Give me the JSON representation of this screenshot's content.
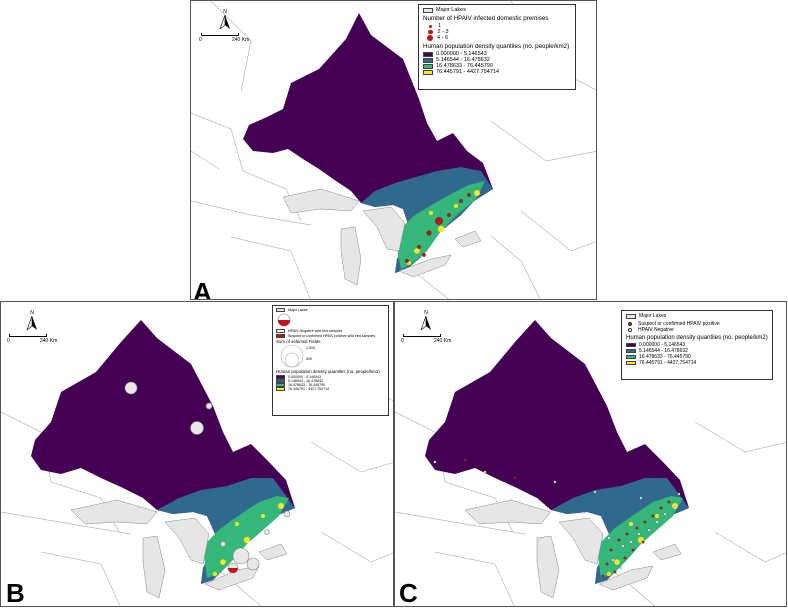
{
  "figure": {
    "panels": [
      {
        "id": "A",
        "letter": "A",
        "north_label": "N",
        "scale": {
          "zero": "0",
          "distance": "240 Km"
        },
        "legend": {
          "lakes_label": "Major Lakes",
          "points_title": "Number of HPAIV infected domestic premises",
          "point_classes": [
            "1",
            "2 - 3",
            "4 - 6"
          ],
          "density_title": "Human population density quantiles (no. people/km2)",
          "density_classes": [
            "0.000000 - 5.146543",
            "5.146544 - 16.478632",
            "16.478633 - 76.445790",
            "76.445791 - 4427.754714"
          ]
        }
      },
      {
        "id": "B",
        "letter": "B",
        "north_label": "N",
        "scale": {
          "zero": "0",
          "distance": "240 Km"
        },
        "legend": {
          "lakes_label": "Major Lakes",
          "neg_label": "HPAIV Negative wild bird samples",
          "pos_label": "Suspect or confirmed HPAIV positive wild bird samples",
          "size_title": "Sum of selected Fields",
          "size_values": [
            "1,000",
            "500"
          ],
          "density_title": "Human population density quantiles (no. people/km2)",
          "density_classes": [
            "0.000000 - 5.146543",
            "5.146544 - 16.478632",
            "16.478633 - 76.445790",
            "76.445791 - 4427.754714"
          ]
        }
      },
      {
        "id": "C",
        "letter": "C",
        "north_label": "N",
        "scale": {
          "zero": "0",
          "distance": "240 Km"
        },
        "legend": {
          "lakes_label": "Major Lakes",
          "pos_label": "Suspect or confirmed HPAIV positive",
          "neg_label": "HPAIV Negative",
          "density_title": "Human population density quantiles (no. people/km2)",
          "density_classes": [
            "0.000000 - 5.146543",
            "5.146544 - 16.478632",
            "16.478633 - 76.445790",
            "76.445791 - 4427.754714"
          ]
        }
      }
    ],
    "colors": {
      "density": [
        "#440154",
        "#31688e",
        "#35b779",
        "#fde725"
      ],
      "lakes": "#e6e6e6",
      "positive": "#c0141c",
      "negative": "#ffffff"
    }
  }
}
